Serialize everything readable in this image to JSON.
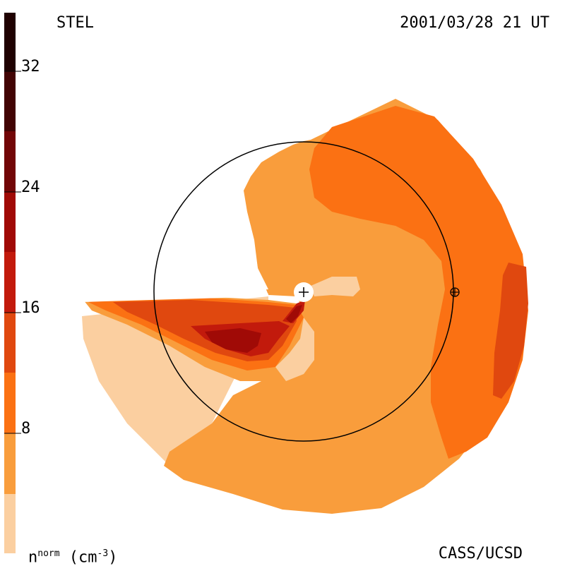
{
  "header": {
    "model_label": "STEL",
    "timestamp": "2001/03/28 21 UT"
  },
  "footer": {
    "credit": "CASS/UCSD"
  },
  "colorbar": {
    "unit_base": "n",
    "unit_sup": "norm",
    "unit_rest": " (cm",
    "unit_exp": "-3",
    "unit_close": ")",
    "ticks": [
      "32",
      "24",
      "16",
      "8"
    ],
    "bands": [
      {
        "from": 0,
        "to": 4,
        "color": "#FBCFA0"
      },
      {
        "from": 4,
        "to": 8,
        "color": "#F99D3C"
      },
      {
        "from": 8,
        "to": 12,
        "color": "#FB7113"
      },
      {
        "from": 12,
        "to": 16,
        "color": "#E0480F"
      },
      {
        "from": 16,
        "to": 20,
        "color": "#C21A0C"
      },
      {
        "from": 20,
        "to": 24,
        "color": "#A00A06"
      },
      {
        "from": 24,
        "to": 28,
        "color": "#720607"
      },
      {
        "from": 28,
        "to": 32,
        "color": "#420404"
      },
      {
        "from": 32,
        "to": 36,
        "color": "#1F0101"
      }
    ]
  },
  "markers": {
    "sun": "+",
    "earth": "⊕"
  }
}
